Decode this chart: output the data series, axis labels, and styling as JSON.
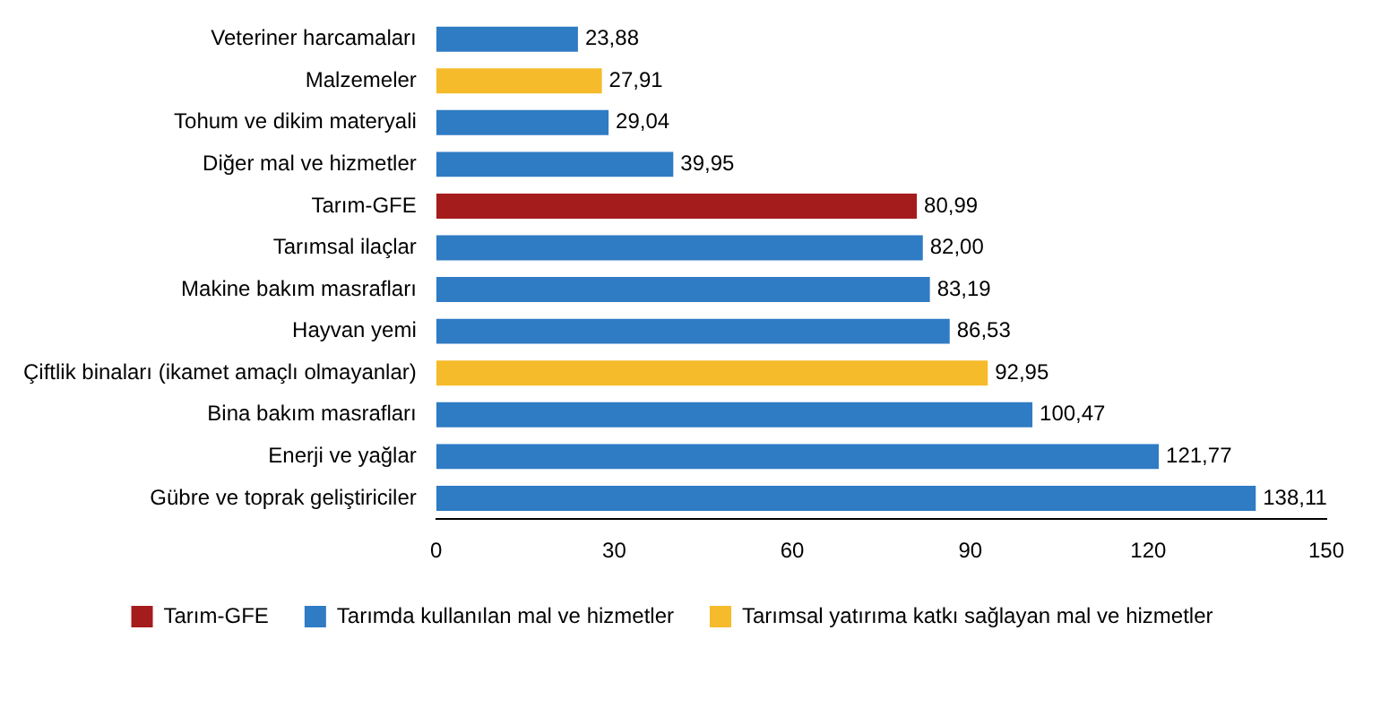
{
  "chart_data": {
    "type": "bar",
    "orientation": "horizontal",
    "categories": [
      "Veteriner harcamaları",
      "Malzemeler",
      "Tohum ve dikim materyali",
      "Diğer mal ve hizmetler",
      "Tarım-GFE",
      "Tarımsal ilaçlar",
      "Makine bakım masrafları",
      "Hayvan yemi",
      "Çiftlik binaları (ikamet amaçlı olmayanlar)",
      "Bina bakım masrafları",
      "Enerji ve yağlar",
      "Gübre ve toprak geliştiriciler"
    ],
    "series": [
      {
        "name": "Tarım-GFE",
        "color": "#a51c1c",
        "values": [
          null,
          null,
          null,
          null,
          80.99,
          null,
          null,
          null,
          null,
          null,
          null,
          null
        ],
        "value_labels": [
          null,
          null,
          null,
          null,
          "80,99",
          null,
          null,
          null,
          null,
          null,
          null,
          null
        ]
      },
      {
        "name": "Tarımda kullanılan mal ve hizmetler",
        "color": "#2f7bc4",
        "values": [
          23.88,
          null,
          29.04,
          39.95,
          null,
          82.0,
          83.19,
          86.53,
          null,
          100.47,
          121.77,
          138.11
        ],
        "value_labels": [
          "23,88",
          null,
          "29,04",
          "39,95",
          null,
          "82,00",
          "83,19",
          "86,53",
          null,
          "100,47",
          "121,77",
          "138,11"
        ]
      },
      {
        "name": "Tarımsal yatırıma katkı sağlayan mal ve hizmetler",
        "color": "#f6bb2a",
        "values": [
          null,
          27.91,
          null,
          null,
          null,
          null,
          null,
          null,
          92.95,
          null,
          null,
          null
        ],
        "value_labels": [
          null,
          "27,91",
          null,
          null,
          null,
          null,
          null,
          null,
          "92,95",
          null,
          null,
          null
        ]
      }
    ],
    "xlim": [
      0,
      150
    ],
    "xticks": [
      0,
      30,
      60,
      90,
      120,
      150
    ],
    "grid": false,
    "legend": "bottom"
  }
}
